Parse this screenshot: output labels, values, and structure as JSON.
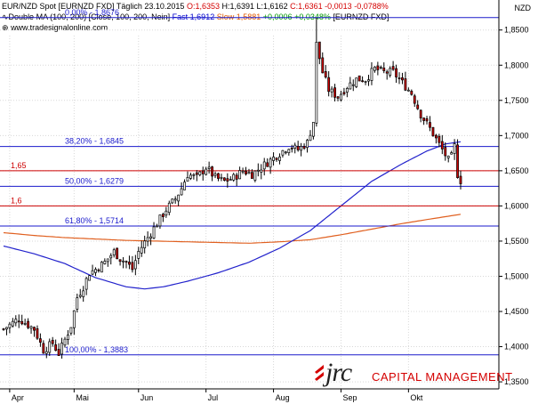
{
  "header": {
    "line1": {
      "instrument": "EUR/NZD Spot [EURNZD FXD]",
      "period": "Täglich",
      "date": "23.10.2015",
      "open": "O:1,6353",
      "high": "H:1,6391",
      "low": "L:1,6162",
      "close": "C:1,6361",
      "change": "-0,0013",
      "change_pct": "-0,0788%"
    },
    "line2": {
      "indicator": "Double MA (100, 200) [Close, 100, 200, Nein]",
      "fast": "Fast 1,6912",
      "slow": "Slow 1,5881",
      "delta": "+0,0006",
      "delta_pct": "+0,0348%",
      "symbol": "[EURNZD FXD]"
    },
    "website": "www.tradesignalonline.com",
    "currency": "NZD"
  },
  "logo": {
    "jrc": "jrc",
    "capital": "CAPITAL MANAGEMENT"
  },
  "colors": {
    "candle_up": "#ffffff",
    "candle_down": "#cc0000",
    "candle_outline": "#000000",
    "fast_ma": "#2222cc",
    "slow_ma": "#e06020",
    "fib_line": "#1a1acc",
    "level_line": "#cc0000",
    "grid": "#d8d8d8"
  },
  "chart_data": {
    "type": "candlestick",
    "ylim": [
      1.34,
      1.88
    ],
    "y_ticks": [
      "1,3500",
      "1,4000",
      "1,4500",
      "1,5000",
      "1,5500",
      "1,6000",
      "1,6500",
      "1,7000",
      "1,7500",
      "1,8000",
      "1,8500"
    ],
    "y_tick_values": [
      1.35,
      1.4,
      1.45,
      1.5,
      1.55,
      1.6,
      1.65,
      1.7,
      1.75,
      1.8,
      1.85
    ],
    "x_month_labels": [
      "Apr",
      "Mai",
      "Jun",
      "Jul",
      "Aug",
      "Sep",
      "Okt"
    ],
    "x_month_start_index": [
      2,
      23,
      44,
      66,
      88,
      110,
      132
    ],
    "n_bars": 150,
    "fib_levels": [
      {
        "label": "0,00% - 1,8676",
        "value": 1.8676
      },
      {
        "label": "38,20% - 1,6845",
        "value": 1.6845
      },
      {
        "label": "50,00% - 1,6279",
        "value": 1.6279
      },
      {
        "label": "61,80% - 1,5714",
        "value": 1.5714
      },
      {
        "label": "100,00% - 1,3883",
        "value": 1.3883
      }
    ],
    "horizontal_levels": [
      {
        "label": "1,65",
        "value": 1.65
      },
      {
        "label": "1,6",
        "value": 1.6
      }
    ],
    "close_path": [
      [
        0,
        1.425
      ],
      [
        5,
        1.44
      ],
      [
        10,
        1.425
      ],
      [
        13,
        1.395
      ],
      [
        16,
        1.405
      ],
      [
        18,
        1.39
      ],
      [
        20,
        1.41
      ],
      [
        22,
        1.43
      ],
      [
        24,
        1.47
      ],
      [
        26,
        1.485
      ],
      [
        28,
        1.505
      ],
      [
        30,
        1.51
      ],
      [
        33,
        1.52
      ],
      [
        36,
        1.535
      ],
      [
        38,
        1.525
      ],
      [
        40,
        1.52
      ],
      [
        42,
        1.51
      ],
      [
        44,
        1.535
      ],
      [
        47,
        1.555
      ],
      [
        50,
        1.575
      ],
      [
        53,
        1.595
      ],
      [
        56,
        1.61
      ],
      [
        58,
        1.625
      ],
      [
        60,
        1.645
      ],
      [
        63,
        1.64
      ],
      [
        66,
        1.655
      ],
      [
        69,
        1.64
      ],
      [
        72,
        1.635
      ],
      [
        75,
        1.64
      ],
      [
        78,
        1.65
      ],
      [
        81,
        1.645
      ],
      [
        84,
        1.655
      ],
      [
        87,
        1.665
      ],
      [
        90,
        1.675
      ],
      [
        93,
        1.685
      ],
      [
        96,
        1.68
      ],
      [
        99,
        1.69
      ],
      [
        101,
        1.72
      ],
      [
        102,
        1.83
      ],
      [
        104,
        1.79
      ],
      [
        106,
        1.765
      ],
      [
        109,
        1.755
      ],
      [
        112,
        1.77
      ],
      [
        115,
        1.78
      ],
      [
        118,
        1.78
      ],
      [
        121,
        1.795
      ],
      [
        124,
        1.79
      ],
      [
        127,
        1.79
      ],
      [
        130,
        1.775
      ],
      [
        133,
        1.76
      ],
      [
        136,
        1.73
      ],
      [
        139,
        1.71
      ],
      [
        141,
        1.695
      ],
      [
        143,
        1.68
      ],
      [
        145,
        1.665
      ],
      [
        146,
        1.67
      ],
      [
        147,
        1.685
      ],
      [
        148,
        1.645
      ],
      [
        149,
        1.636
      ]
    ],
    "fast_ma": [
      [
        0,
        1.543
      ],
      [
        10,
        1.532
      ],
      [
        20,
        1.518
      ],
      [
        30,
        1.498
      ],
      [
        40,
        1.485
      ],
      [
        46,
        1.482
      ],
      [
        52,
        1.485
      ],
      [
        60,
        1.493
      ],
      [
        70,
        1.505
      ],
      [
        80,
        1.52
      ],
      [
        90,
        1.54
      ],
      [
        100,
        1.565
      ],
      [
        110,
        1.6
      ],
      [
        120,
        1.635
      ],
      [
        130,
        1.66
      ],
      [
        138,
        1.678
      ],
      [
        144,
        1.688
      ],
      [
        149,
        1.6912
      ]
    ],
    "slow_ma": [
      [
        0,
        1.562
      ],
      [
        10,
        1.558
      ],
      [
        20,
        1.555
      ],
      [
        30,
        1.553
      ],
      [
        40,
        1.551
      ],
      [
        50,
        1.55
      ],
      [
        60,
        1.549
      ],
      [
        70,
        1.548
      ],
      [
        80,
        1.547
      ],
      [
        90,
        1.549
      ],
      [
        100,
        1.552
      ],
      [
        110,
        1.559
      ],
      [
        120,
        1.567
      ],
      [
        130,
        1.575
      ],
      [
        140,
        1.582
      ],
      [
        149,
        1.5881
      ]
    ]
  }
}
